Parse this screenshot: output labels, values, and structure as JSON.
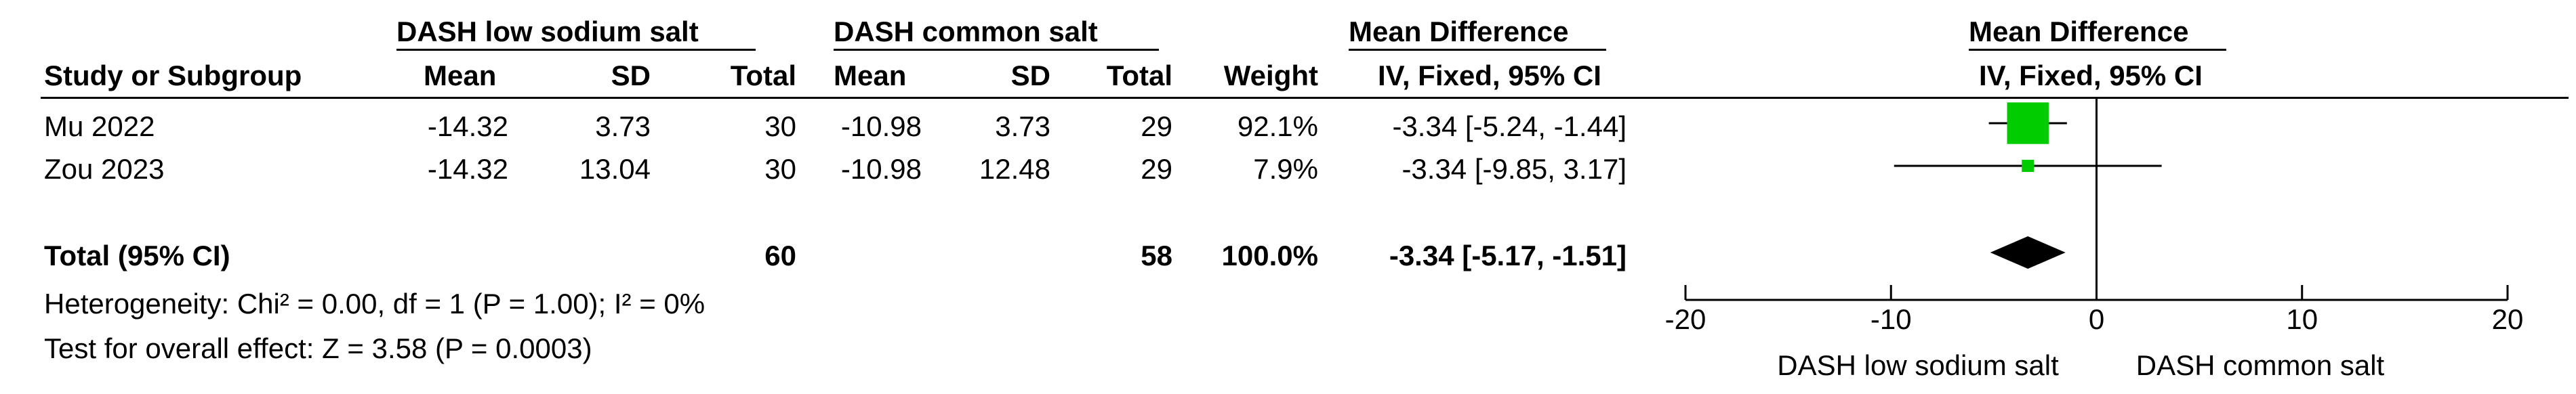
{
  "header": {
    "group1": "DASH low sodium salt",
    "group2": "DASH common salt",
    "md_table": "Mean Difference",
    "md_plot": "Mean Difference",
    "study_col": "Study or Subgroup",
    "mean": "Mean",
    "sd": "SD",
    "total": "Total",
    "weight": "Weight",
    "method_table": "IV, Fixed, 95% CI",
    "method_plot": "IV, Fixed, 95% CI"
  },
  "studies": [
    {
      "name": "Mu 2022",
      "mean1": "-14.32",
      "sd1": "3.73",
      "total1": "30",
      "mean2": "-10.98",
      "sd2": "3.73",
      "total2": "29",
      "weight": "92.1%",
      "ci": "-3.34 [-5.24, -1.44]"
    },
    {
      "name": "Zou 2023",
      "mean1": "-14.32",
      "sd1": "13.04",
      "total1": "30",
      "mean2": "-10.98",
      "sd2": "12.48",
      "total2": "29",
      "weight": "7.9%",
      "ci": "-3.34 [-9.85, 3.17]"
    }
  ],
  "total": {
    "label": "Total (95% CI)",
    "total1": "60",
    "total2": "58",
    "weight": "100.0%",
    "ci": "-3.34 [-5.17, -1.51]"
  },
  "heterogeneity": "Heterogeneity: Chi² = 0.00, df = 1 (P = 1.00); I² = 0%",
  "overall_effect": "Test for overall effect: Z = 3.58 (P = 0.0003)",
  "axis_left_label": "DASH low sodium salt",
  "axis_right_label": "DASH common salt",
  "colors": {
    "study_marker": "#00cc00",
    "diamond": "#000000"
  },
  "chart_data": {
    "type": "forest",
    "xlim": [
      -20,
      20
    ],
    "ticks": [
      -20,
      -10,
      0,
      10,
      20
    ],
    "tick_labels": [
      "-20",
      "-10",
      "0",
      "10",
      "20"
    ],
    "null_line": 0,
    "series": [
      {
        "name": "Mu 2022",
        "estimate": -3.34,
        "lower": -5.24,
        "upper": -1.44,
        "weight": 92.1
      },
      {
        "name": "Zou 2023",
        "estimate": -3.34,
        "lower": -9.85,
        "upper": 3.17,
        "weight": 7.9
      }
    ],
    "pooled": {
      "estimate": -3.34,
      "lower": -5.17,
      "upper": -1.51
    }
  }
}
